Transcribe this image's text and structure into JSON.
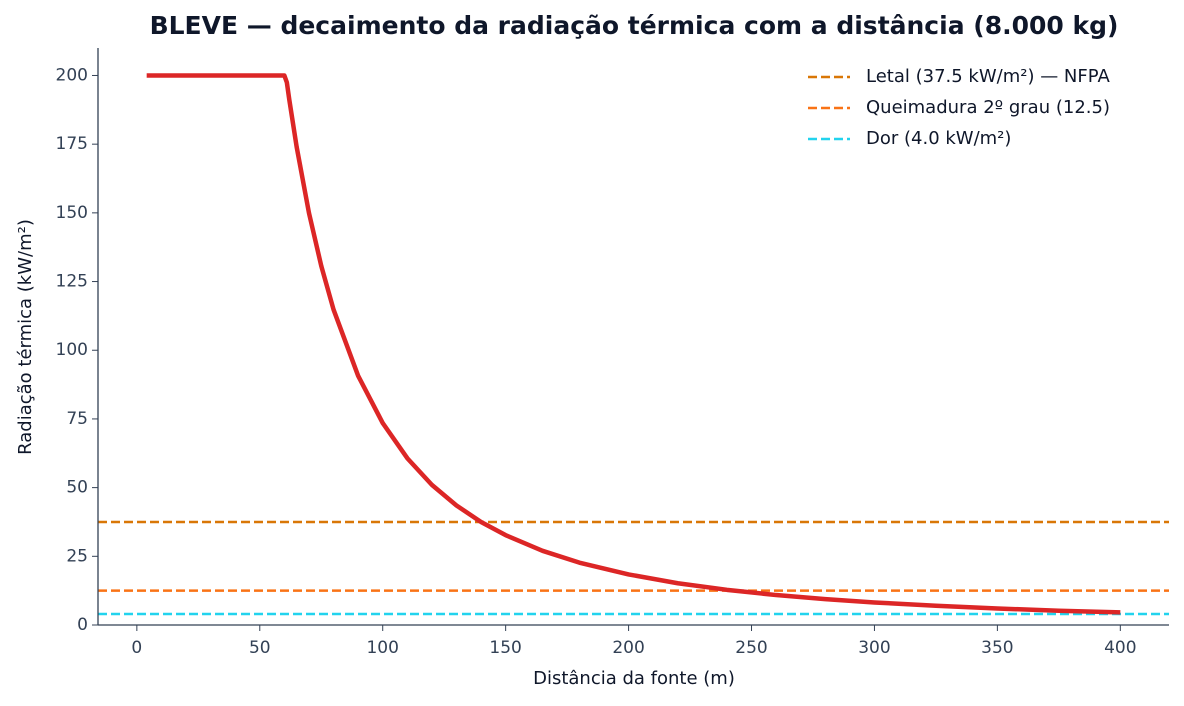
{
  "chart_data": {
    "type": "line",
    "title": "BLEVE — decaimento da radiação térmica com a distância (8.000 kg)",
    "x_label": "Distância da fonte (m)",
    "y_label": "Radiação térmica (kW/m²)",
    "x": [
      4,
      10,
      20,
      30,
      40,
      50,
      60,
      61,
      62,
      65,
      70,
      75,
      80,
      90,
      100,
      110,
      120,
      130,
      140,
      150,
      165,
      180,
      200,
      220,
      240,
      260,
      280,
      300,
      325,
      350,
      375,
      400
    ],
    "series": [
      {
        "color": "#dc2626",
        "values": [
          200,
          200,
          200,
          200,
          200,
          200,
          200,
          197.5,
          191.2,
          174.0,
          150.0,
          130.7,
          114.8,
          90.7,
          73.5,
          60.7,
          51.0,
          43.5,
          37.5,
          32.7,
          27.0,
          22.7,
          18.4,
          15.2,
          12.8,
          10.9,
          9.4,
          8.2,
          7.0,
          6.0,
          5.2,
          4.6
        ]
      }
    ],
    "hlines": [
      {
        "name": "Letal (37.5 kW/m²) — NFPA",
        "value": 37.5,
        "color": "#d97706"
      },
      {
        "name": "Queimadura 2º grau (12.5)",
        "value": 12.5,
        "color": "#f97316"
      },
      {
        "name": "Dor (4.0 kW/m²)",
        "value": 4.0,
        "color": "#22d3ee"
      }
    ],
    "xlim": [
      -15.8,
      419.8
    ],
    "ylim": [
      0,
      210
    ],
    "xticks": [
      0,
      50,
      100,
      150,
      200,
      250,
      300,
      350,
      400
    ],
    "yticks": [
      0,
      25,
      50,
      75,
      100,
      125,
      150,
      175,
      200
    ],
    "legend": "upper right"
  }
}
